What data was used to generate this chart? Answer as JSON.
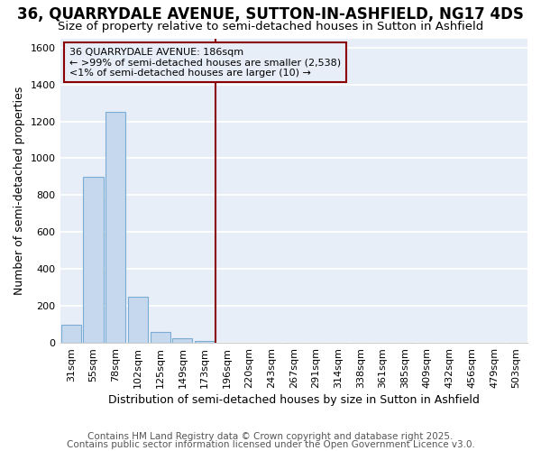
{
  "title": "36, QUARRYDALE AVENUE, SUTTON-IN-ASHFIELD, NG17 4DS",
  "subtitle": "Size of property relative to semi-detached houses in Sutton in Ashfield",
  "xlabel": "Distribution of semi-detached houses by size in Sutton in Ashfield",
  "ylabel": "Number of semi-detached properties",
  "bar_color": "#c5d8ee",
  "bar_edge_color": "#7aadd4",
  "vline_color": "#8b0000",
  "annotation_text": "36 QUARRYDALE AVENUE: 186sqm\n← >99% of semi-detached houses are smaller (2,538)\n<1% of semi-detached houses are larger (10) →",
  "annotation_box_color": "#8b0000",
  "categories": [
    "31sqm",
    "55sqm",
    "78sqm",
    "102sqm",
    "125sqm",
    "149sqm",
    "173sqm",
    "196sqm",
    "220sqm",
    "243sqm",
    "267sqm",
    "291sqm",
    "314sqm",
    "338sqm",
    "361sqm",
    "385sqm",
    "409sqm",
    "432sqm",
    "456sqm",
    "479sqm",
    "503sqm"
  ],
  "values": [
    100,
    900,
    1250,
    250,
    60,
    25,
    10,
    0,
    0,
    0,
    0,
    0,
    0,
    0,
    0,
    0,
    0,
    0,
    0,
    0,
    0
  ],
  "vline_index": 7,
  "ylim": [
    0,
    1650
  ],
  "yticks": [
    0,
    200,
    400,
    600,
    800,
    1000,
    1200,
    1400,
    1600
  ],
  "footer_line1": "Contains HM Land Registry data © Crown copyright and database right 2025.",
  "footer_line2": "Contains public sector information licensed under the Open Government Licence v3.0.",
  "plot_bg_color": "#e8eef8",
  "fig_bg_color": "#ffffff",
  "grid_color": "#ffffff",
  "title_fontsize": 12,
  "subtitle_fontsize": 9.5,
  "tick_fontsize": 8,
  "axis_label_fontsize": 9,
  "footer_fontsize": 7.5
}
